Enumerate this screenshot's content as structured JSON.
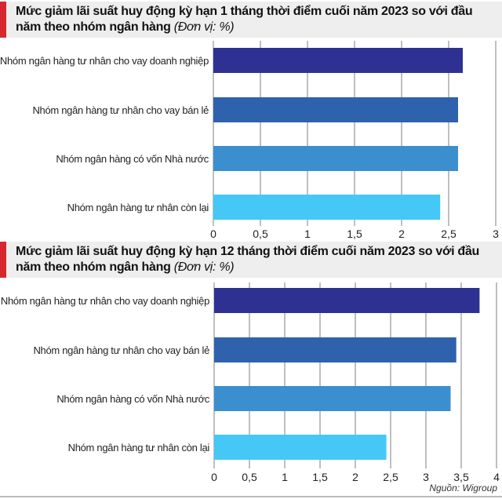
{
  "chart_data": [
    {
      "type": "bar",
      "orientation": "horizontal",
      "title": "Mức giảm lãi suất huy động kỳ hạn 1 tháng thời điểm cuối năm 2023 so với đầu năm theo nhóm ngân hàng",
      "unit": "(Đơn vị: %)",
      "categories": [
        "Nhóm ngân hàng tư nhân cho vay doanh nghiệp",
        "Nhóm ngân hàng tư nhân cho vay bán lẻ",
        "Nhóm ngân hàng có vốn Nhà nước",
        "Nhóm ngân hàng tư nhân còn lại"
      ],
      "values": [
        2.65,
        2.6,
        2.6,
        2.41
      ],
      "colors": [
        "#2e3192",
        "#2f62ad",
        "#3b8fcf",
        "#45c8f5"
      ],
      "xlim": [
        0,
        3
      ],
      "ticks": [
        "0",
        "0,5",
        "1",
        "1,5",
        "2",
        "2,5",
        "3"
      ],
      "tick_values": [
        0,
        0.5,
        1,
        1.5,
        2,
        2.5,
        3
      ],
      "grid": true
    },
    {
      "type": "bar",
      "orientation": "horizontal",
      "title": "Mức giảm lãi suất huy động kỳ hạn 12 tháng thời điểm cuối năm 2023 so với đầu năm theo nhóm ngân hàng",
      "unit": "(Đơn vị: %)",
      "categories": [
        "Nhóm ngân hàng tư nhân cho vay doanh nghiệp",
        "Nhóm ngân hàng tư nhân cho vay bán lẻ",
        "Nhóm ngân hàng có vốn Nhà nước",
        "Nhóm ngân hàng tư nhân còn lại"
      ],
      "values": [
        3.76,
        3.43,
        3.35,
        2.44
      ],
      "colors": [
        "#2e3192",
        "#2f62ad",
        "#3b8fcf",
        "#45c8f5"
      ],
      "xlim": [
        0,
        4
      ],
      "ticks": [
        "0",
        "0,5",
        "1",
        "1,5",
        "2",
        "2,5",
        "3",
        "3,5",
        "4"
      ],
      "tick_values": [
        0,
        0.5,
        1,
        1.5,
        2,
        2.5,
        3,
        3.5,
        4
      ],
      "grid": true
    }
  ],
  "source": "Nguồn: Wigroup",
  "accent": "#d7282f"
}
